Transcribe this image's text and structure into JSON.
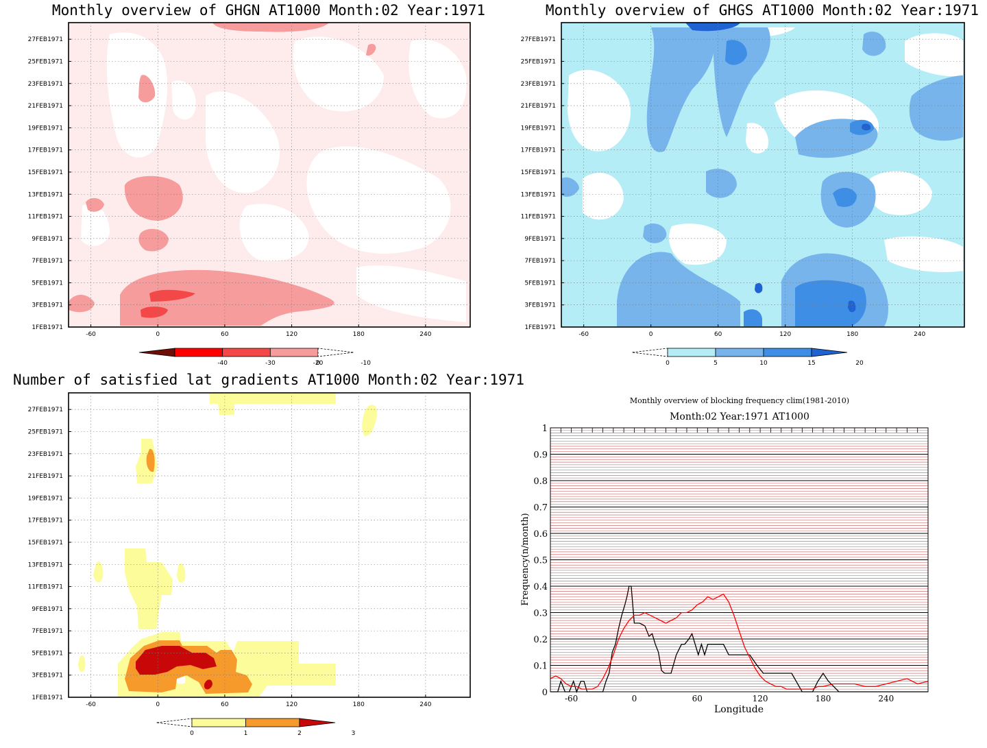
{
  "panels": {
    "ghgn": {
      "title": "Monthly overview of GHGN AT1000 Month:02 Year:1971",
      "colorbar": {
        "labels": [
          "-40",
          "-30",
          "-20",
          "-10",
          "0"
        ],
        "colors": [
          "#6e0e06",
          "#ff0000",
          "#f44848",
          "#f69c9c",
          "#feecec"
        ]
      },
      "fill_light": "#feecec",
      "fill_mid": "#f69c9c",
      "fill_strong": "#f44848"
    },
    "ghgs": {
      "title": "Monthly overview of GHGS AT1000 Month:02 Year:1971",
      "colorbar": {
        "labels": [
          "0",
          "5",
          "10",
          "15",
          "20"
        ],
        "colors": [
          "#b4edf6",
          "#78b4ec",
          "#3e8ee6",
          "#1f62d2",
          "#999999"
        ]
      }
    },
    "gradients": {
      "title": "Number of satisfied lat gradients AT1000 Month:02 Year:1971",
      "colorbar": {
        "labels": [
          "0",
          "1",
          "2",
          "3"
        ],
        "colors": [
          "#fdfc9b",
          "#f79a2c",
          "#c80808",
          "#999999"
        ]
      }
    },
    "frequency": {
      "title_line1": "Monthly overview of blocking frequency clim(1981-2010)",
      "title_line2": "Month:02 Year:1971  AT1000"
    }
  },
  "hovmoller_axes": {
    "xticks": [
      "-60",
      "0",
      "60",
      "120",
      "180",
      "240"
    ],
    "xtick_values": [
      -60,
      0,
      60,
      120,
      180,
      240
    ],
    "xlim": [
      -80,
      280
    ],
    "yticks": [
      "1FEB1971",
      "3FEB1971",
      "5FEB1971",
      "7FEB1971",
      "9FEB1971",
      "11FEB1971",
      "13FEB1971",
      "15FEB1971",
      "17FEB1971",
      "19FEB1971",
      "21FEB1971",
      "23FEB1971",
      "25FEB1971",
      "27FEB1971"
    ],
    "ylim": [
      1,
      28.5
    ]
  },
  "chart_data": [
    {
      "type": "heatmap",
      "title": "Monthly overview of GHGN AT1000 Month:02 Year:1971",
      "x_range": [
        -80,
        280
      ],
      "y_range": [
        "1FEB1971",
        "28FEB1971"
      ],
      "colorbar_levels": [
        -40,
        -30,
        -20,
        -10,
        0
      ]
    },
    {
      "type": "heatmap",
      "title": "Monthly overview of GHGS AT1000 Month:02 Year:1971",
      "x_range": [
        -80,
        280
      ],
      "y_range": [
        "1FEB1971",
        "28FEB1971"
      ],
      "colorbar_levels": [
        0,
        5,
        10,
        15,
        20
      ]
    },
    {
      "type": "heatmap",
      "title": "Number of satisfied lat gradients AT1000 Month:02 Year:1971",
      "x_range": [
        -80,
        280
      ],
      "y_range": [
        "1FEB1971",
        "28FEB1971"
      ],
      "colorbar_levels": [
        0,
        1,
        2,
        3
      ]
    },
    {
      "type": "line",
      "title": "Monthly overview of blocking frequency clim(1981-2010)",
      "subtitle": "Month:02 Year:1971  AT1000",
      "xlabel": "Longitude",
      "ylabel": "Frequency(n/month)",
      "xlim": [
        -80,
        280
      ],
      "ylim": [
        0,
        1
      ],
      "xticks": [
        "-60",
        "0",
        "60",
        "120",
        "180",
        "240"
      ],
      "yticks": [
        "0",
        "0.1",
        "0.2",
        "0.3",
        "0.4",
        "0.5",
        "0.6",
        "0.7",
        "0.8",
        "0.9",
        "1"
      ],
      "grid": true,
      "series": [
        {
          "color": "#000000",
          "x": [
            -80,
            -73,
            -70,
            -66,
            -62,
            -58,
            -55,
            -51,
            -48,
            -45,
            -40,
            -35,
            -30,
            -27,
            -24,
            -21,
            -18,
            -15,
            -12,
            -9,
            -7,
            -5,
            -3,
            0,
            5,
            10,
            14,
            17,
            20,
            23,
            26,
            29,
            35,
            40,
            45,
            48,
            52,
            55,
            58,
            61,
            64,
            67,
            70,
            75,
            80,
            85,
            90,
            100,
            110,
            117,
            123,
            130,
            140,
            150,
            160,
            170,
            175,
            180,
            185,
            190,
            195,
            200,
            210,
            220,
            230,
            240,
            250,
            260,
            270,
            280
          ],
          "y": [
            0,
            0,
            0.04,
            0,
            0,
            0.04,
            0,
            0.04,
            0.04,
            0,
            0,
            0,
            0,
            0.04,
            0.07,
            0.15,
            0.18,
            0.24,
            0.29,
            0.33,
            0.36,
            0.4,
            0.4,
            0.26,
            0.26,
            0.25,
            0.21,
            0.22,
            0.18,
            0.15,
            0.08,
            0.07,
            0.07,
            0.14,
            0.18,
            0.18,
            0.2,
            0.22,
            0.18,
            0.14,
            0.18,
            0.14,
            0.18,
            0.18,
            0.18,
            0.18,
            0.14,
            0.14,
            0.14,
            0.1,
            0.07,
            0.07,
            0.07,
            0.07,
            0,
            0,
            0.04,
            0.07,
            0.04,
            0.02,
            0,
            0,
            0,
            0,
            0,
            0,
            0,
            0,
            0,
            0
          ]
        },
        {
          "color": "#ff0000",
          "x": [
            -80,
            -75,
            -70,
            -65,
            -60,
            -55,
            -50,
            -45,
            -40,
            -35,
            -30,
            -25,
            -20,
            -15,
            -10,
            -5,
            0,
            5,
            10,
            15,
            20,
            25,
            30,
            35,
            40,
            45,
            50,
            55,
            60,
            65,
            70,
            75,
            80,
            85,
            90,
            95,
            100,
            105,
            110,
            115,
            120,
            125,
            130,
            135,
            140,
            145,
            150,
            155,
            160,
            165,
            170,
            175,
            180,
            190,
            200,
            210,
            220,
            230,
            240,
            250,
            260,
            270,
            280
          ],
          "y": [
            0.05,
            0.06,
            0.05,
            0.03,
            0.02,
            0.02,
            0.01,
            0.01,
            0.01,
            0.02,
            0.05,
            0.09,
            0.14,
            0.2,
            0.24,
            0.27,
            0.29,
            0.29,
            0.3,
            0.29,
            0.28,
            0.27,
            0.26,
            0.27,
            0.28,
            0.3,
            0.3,
            0.31,
            0.33,
            0.34,
            0.36,
            0.35,
            0.36,
            0.37,
            0.34,
            0.29,
            0.23,
            0.17,
            0.13,
            0.09,
            0.06,
            0.04,
            0.03,
            0.02,
            0.02,
            0.01,
            0.01,
            0.01,
            0.01,
            0.01,
            0.01,
            0.02,
            0.02,
            0.03,
            0.03,
            0.03,
            0.02,
            0.02,
            0.03,
            0.04,
            0.05,
            0.03,
            0.04
          ]
        }
      ]
    }
  ]
}
